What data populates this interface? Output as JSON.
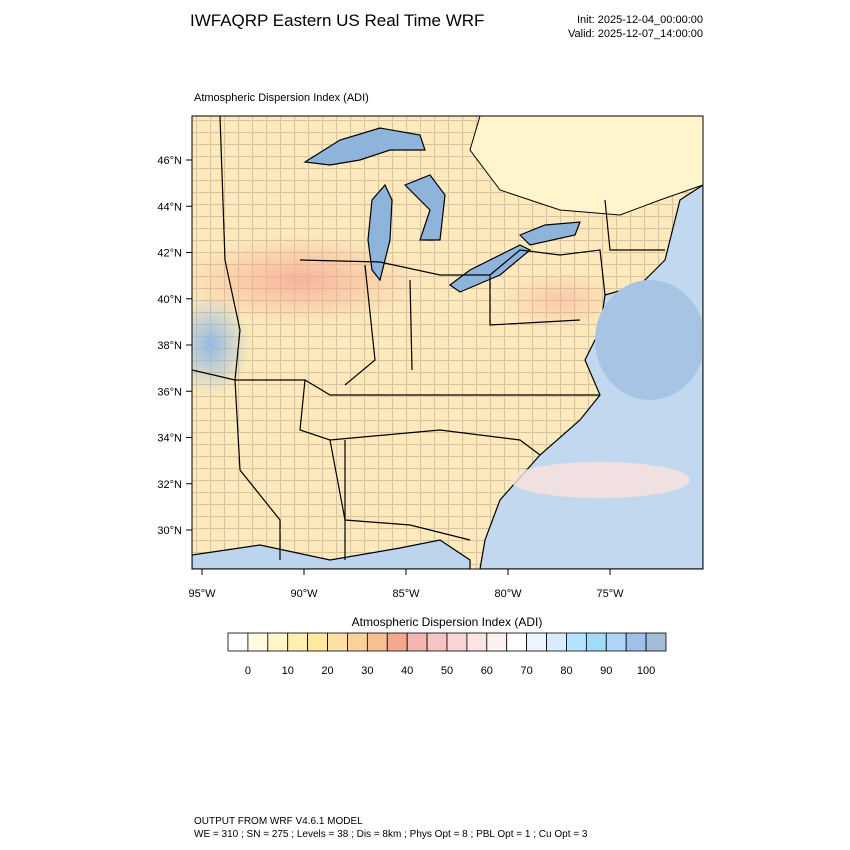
{
  "header": {
    "title": "IWFAQRP Eastern US Real Time WRF",
    "init": "Init: 2025-12-04_00:00:00",
    "valid": "Valid: 2025-12-07_14:00:00"
  },
  "map": {
    "subtitle": "Atmospheric Dispersion Index   (ADI)",
    "lat_labels": [
      "46°N",
      "44°N",
      "42°N",
      "40°N",
      "38°N",
      "36°N",
      "34°N",
      "32°N",
      "30°N"
    ],
    "lon_labels": [
      "95°W",
      "90°W",
      "85°W",
      "80°W",
      "75°W"
    ]
  },
  "colorbar": {
    "title": "Atmospheric Dispersion Index  (ADI)",
    "labels": [
      "0",
      "10",
      "20",
      "30",
      "40",
      "50",
      "60",
      "70",
      "80",
      "90",
      "100"
    ],
    "colors": [
      "#ffffff",
      "#fffbe0",
      "#fff5c8",
      "#fff0b0",
      "#ffe9a0",
      "#fde0a4",
      "#fbd19a",
      "#f8c090",
      "#f5a890",
      "#f4b4b0",
      "#f6c4c4",
      "#f8d4d4",
      "#fae4e4",
      "#fcf0f0",
      "#ffffff",
      "#eef4ff",
      "#d8ecfc",
      "#b4e4fc",
      "#a0dcf8",
      "#b0d4f8",
      "#a0c0ec",
      "#a4bcd8"
    ]
  },
  "footer": {
    "line1": "OUTPUT FROM WRF V4.6.1 MODEL",
    "line2": "WE = 310 ; SN = 275 ; Levels = 38 ; Dis = 8km ; Phys Opt = 8 ; PBL Opt = 1 ; Cu Opt = 3"
  }
}
